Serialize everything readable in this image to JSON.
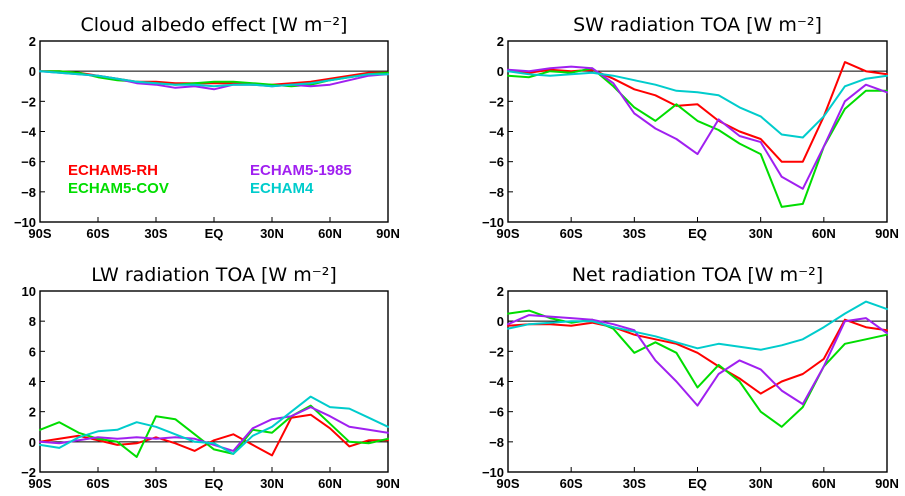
{
  "colors": {
    "ECHAM5-RH": "#ff0000",
    "ECHAM5-COV": "#00dd00",
    "ECHAM5-1985": "#a020f0",
    "ECHAM4": "#00cccc"
  },
  "legend": {
    "items": [
      {
        "name": "ECHAM5-RH",
        "color": "#ff0000"
      },
      {
        "name": "ECHAM5-COV",
        "color": "#00dd00"
      },
      {
        "name": "ECHAM5-1985",
        "color": "#a020f0"
      },
      {
        "name": "ECHAM4",
        "color": "#00cccc"
      }
    ]
  },
  "chart_data": [
    {
      "type": "line",
      "title": "Cloud albedo effect [W m⁻²]",
      "xlim": [
        -90,
        90
      ],
      "ylim": [
        -10,
        2
      ],
      "xticks": [
        -90,
        -60,
        -30,
        0,
        30,
        60,
        90
      ],
      "xticklabels": [
        "90S",
        "60S",
        "30S",
        "EQ",
        "30N",
        "60N",
        "90N"
      ],
      "yticks": [
        -10,
        -8,
        -6,
        -4,
        -2,
        0,
        2
      ],
      "yticklabels": [
        "−10",
        "−8",
        "−6",
        "−4",
        "−2",
        "0",
        "2"
      ],
      "x": [
        -90,
        -80,
        -70,
        -60,
        -50,
        -40,
        -30,
        -20,
        -10,
        0,
        10,
        20,
        30,
        40,
        50,
        60,
        70,
        80,
        90
      ],
      "series": [
        {
          "name": "ECHAM5-RH",
          "values": [
            0,
            0,
            -0.1,
            -0.3,
            -0.5,
            -0.7,
            -0.7,
            -0.8,
            -0.8,
            -0.8,
            -0.8,
            -0.9,
            -0.9,
            -0.8,
            -0.7,
            -0.5,
            -0.3,
            -0.1,
            -0.1
          ]
        },
        {
          "name": "ECHAM5-COV",
          "values": [
            0,
            0,
            -0.1,
            -0.4,
            -0.6,
            -0.7,
            -0.8,
            -0.9,
            -0.8,
            -0.7,
            -0.7,
            -0.8,
            -0.9,
            -1.0,
            -0.9,
            -0.6,
            -0.4,
            -0.2,
            -0.1
          ]
        },
        {
          "name": "ECHAM5-1985",
          "values": [
            0,
            -0.1,
            -0.2,
            -0.3,
            -0.5,
            -0.8,
            -0.9,
            -1.1,
            -1.0,
            -1.2,
            -0.9,
            -0.9,
            -1.0,
            -0.9,
            -1.0,
            -0.9,
            -0.6,
            -0.3,
            -0.2
          ]
        },
        {
          "name": "ECHAM4",
          "values": [
            0,
            -0.1,
            -0.2,
            -0.3,
            -0.5,
            -0.7,
            -0.8,
            -0.9,
            -0.9,
            -1.0,
            -0.9,
            -0.9,
            -1.0,
            -0.9,
            -0.8,
            -0.6,
            -0.4,
            -0.2,
            -0.2
          ]
        }
      ]
    },
    {
      "type": "line",
      "title": "SW radiation TOA [W m⁻²]",
      "xlim": [
        -90,
        90
      ],
      "ylim": [
        -10,
        2
      ],
      "xticks": [
        -90,
        -60,
        -30,
        0,
        30,
        60,
        90
      ],
      "xticklabels": [
        "90S",
        "60S",
        "30S",
        "EQ",
        "30N",
        "60N",
        "90N"
      ],
      "yticks": [
        -10,
        -8,
        -6,
        -4,
        -2,
        0,
        2
      ],
      "yticklabels": [
        "−10",
        "−8",
        "−6",
        "−4",
        "−2",
        "0",
        "2"
      ],
      "x": [
        -90,
        -80,
        -70,
        -60,
        -50,
        -40,
        -30,
        -20,
        -10,
        0,
        10,
        20,
        30,
        40,
        50,
        60,
        70,
        80,
        90
      ],
      "series": [
        {
          "name": "ECHAM5-RH",
          "values": [
            0,
            -0.1,
            0.1,
            0,
            0.1,
            -0.5,
            -1.2,
            -1.6,
            -2.3,
            -2.2,
            -3.3,
            -4.0,
            -4.5,
            -6.0,
            -6.0,
            -3.0,
            0.6,
            0,
            -0.2
          ]
        },
        {
          "name": "ECHAM5-COV",
          "values": [
            -0.3,
            -0.4,
            0,
            -0.1,
            0.2,
            -1.0,
            -2.4,
            -3.3,
            -2.2,
            -3.3,
            -3.9,
            -4.8,
            -5.5,
            -9.0,
            -8.8,
            -5.0,
            -2.5,
            -1.3,
            -1.3
          ]
        },
        {
          "name": "ECHAM5-1985",
          "values": [
            0.1,
            0,
            0.2,
            0.3,
            0.2,
            -0.8,
            -2.8,
            -3.8,
            -4.5,
            -5.5,
            -3.2,
            -4.3,
            -4.7,
            -7.0,
            -7.8,
            -5.0,
            -2.0,
            -0.9,
            -1.4
          ]
        },
        {
          "name": "ECHAM4",
          "values": [
            0,
            -0.2,
            -0.3,
            -0.2,
            -0.1,
            -0.3,
            -0.6,
            -0.9,
            -1.3,
            -1.4,
            -1.6,
            -2.4,
            -3.0,
            -4.2,
            -4.4,
            -3.0,
            -1.0,
            -0.5,
            -0.3
          ]
        }
      ]
    },
    {
      "type": "line",
      "title": "LW radiation TOA [W m⁻²]",
      "xlim": [
        -90,
        90
      ],
      "ylim": [
        -2,
        10
      ],
      "xticks": [
        -90,
        -60,
        -30,
        0,
        30,
        60,
        90
      ],
      "xticklabels": [
        "90S",
        "60S",
        "30S",
        "EQ",
        "30N",
        "60N",
        "90N"
      ],
      "yticks": [
        -2,
        0,
        2,
        4,
        6,
        8,
        10
      ],
      "yticklabels": [
        "−2",
        "0",
        "2",
        "4",
        "6",
        "8",
        "10"
      ],
      "x": [
        -90,
        -80,
        -70,
        -60,
        -50,
        -40,
        -30,
        -20,
        -10,
        0,
        10,
        20,
        30,
        40,
        50,
        60,
        70,
        80,
        90
      ],
      "series": [
        {
          "name": "ECHAM5-RH",
          "values": [
            0,
            0.2,
            0.4,
            0.1,
            -0.2,
            -0.1,
            0.3,
            -0.1,
            -0.6,
            0.1,
            0.5,
            -0.2,
            -0.9,
            1.6,
            1.8,
            0.9,
            -0.3,
            0.1,
            0.1
          ]
        },
        {
          "name": "ECHAM5-COV",
          "values": [
            0.8,
            1.3,
            0.6,
            0.2,
            0.0,
            -1.0,
            1.7,
            1.5,
            0.5,
            -0.5,
            -0.8,
            0.8,
            0.6,
            1.7,
            2.4,
            1.2,
            0,
            -0.1,
            0.2
          ]
        },
        {
          "name": "ECHAM5-1985",
          "values": [
            0,
            -0.1,
            0.1,
            0.3,
            0.2,
            0.3,
            0.2,
            0.3,
            0.2,
            -0.2,
            -0.6,
            0.9,
            1.5,
            1.7,
            2.3,
            1.7,
            1.0,
            0.8,
            0.6
          ]
        },
        {
          "name": "ECHAM4",
          "values": [
            -0.2,
            -0.4,
            0.3,
            0.7,
            0.8,
            1.3,
            1.0,
            0.5,
            0.0,
            -0.1,
            -0.8,
            0.4,
            1.0,
            2.0,
            3.0,
            2.3,
            2.2,
            1.6,
            1.0
          ]
        }
      ]
    },
    {
      "type": "line",
      "title": "Net radiation TOA [W m⁻²]",
      "xlim": [
        -90,
        90
      ],
      "ylim": [
        -10,
        2
      ],
      "xticks": [
        -90,
        -60,
        -30,
        0,
        30,
        60,
        90
      ],
      "xticklabels": [
        "90S",
        "60S",
        "30S",
        "EQ",
        "30N",
        "60N",
        "90N"
      ],
      "yticks": [
        -10,
        -8,
        -6,
        -4,
        -2,
        0,
        2
      ],
      "yticklabels": [
        "−10",
        "−8",
        "−6",
        "−4",
        "−2",
        "0",
        "2"
      ],
      "x": [
        -90,
        -80,
        -70,
        -60,
        -50,
        -40,
        -30,
        -20,
        -10,
        0,
        10,
        20,
        30,
        40,
        50,
        60,
        70,
        80,
        90
      ],
      "series": [
        {
          "name": "ECHAM5-RH",
          "values": [
            -0.3,
            -0.2,
            -0.2,
            -0.3,
            -0.1,
            -0.4,
            -0.9,
            -1.2,
            -1.5,
            -2.1,
            -3.0,
            -3.8,
            -4.8,
            -4.0,
            -3.5,
            -2.5,
            0.1,
            -0.4,
            -0.6
          ]
        },
        {
          "name": "ECHAM5-COV",
          "values": [
            0.5,
            0.7,
            0.2,
            -0.1,
            0.1,
            -0.5,
            -2.1,
            -1.4,
            -2.1,
            -4.4,
            -2.9,
            -4.0,
            -6.0,
            -7.0,
            -5.7,
            -3.0,
            -1.5,
            -1.2,
            -0.9
          ]
        },
        {
          "name": "ECHAM5-1985",
          "values": [
            -0.2,
            0.4,
            0.3,
            0.2,
            0.1,
            -0.2,
            -0.6,
            -2.6,
            -4.0,
            -5.6,
            -3.5,
            -2.6,
            -3.2,
            -4.6,
            -5.5,
            -3.0,
            0,
            0.2,
            -0.8
          ]
        },
        {
          "name": "ECHAM4",
          "values": [
            -0.5,
            -0.2,
            -0.1,
            0.0,
            0.0,
            -0.4,
            -0.7,
            -1.0,
            -1.4,
            -1.8,
            -1.5,
            -1.7,
            -1.9,
            -1.6,
            -1.2,
            -0.4,
            0.5,
            1.3,
            0.8
          ]
        }
      ]
    }
  ]
}
